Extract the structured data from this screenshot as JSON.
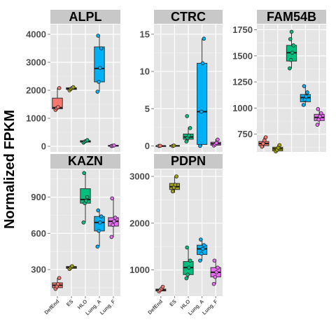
{
  "chart_data": {
    "type": "box",
    "ylabel": "Normalized FPKM",
    "groups": [
      "DefEnd",
      "ES",
      "HLO",
      "Lung_A",
      "Lung_F"
    ],
    "group_colors": {
      "DefEnd": "#F8766D",
      "ES": "#A3A500",
      "HLO": "#00BF7D",
      "Lung_A": "#00B0F6",
      "Lung_F": "#E76BF3"
    },
    "grid": true,
    "panel_background": "#e5e5e5",
    "strip_background": "#c8c8c8",
    "panels": [
      {
        "title": "ALPL",
        "yticks": [
          0,
          1000,
          2000,
          3000,
          4000
        ],
        "ylim": [
          -200,
          4350
        ],
        "boxes": [
          {
            "group": "DefEnd",
            "q1": 1340,
            "median": 1380,
            "q3": 1720,
            "min": 1300,
            "max": 2080,
            "points": [
              1300,
              1360,
              1400,
              2080
            ]
          },
          {
            "group": "ES",
            "q1": 2030,
            "median": 2060,
            "q3": 2090,
            "min": 2000,
            "max": 2120,
            "points": [
              2000,
              2050,
              2080,
              2110
            ]
          },
          {
            "group": "HLO",
            "q1": 150,
            "median": 180,
            "q3": 200,
            "min": 130,
            "max": 220,
            "points": [
              130,
              170,
              190,
              220
            ]
          },
          {
            "group": "Lung_A",
            "q1": 2300,
            "median": 2780,
            "q3": 3550,
            "min": 1950,
            "max": 3950,
            "points": [
              1950,
              2300,
              2800,
              3500,
              3950
            ]
          },
          {
            "group": "Lung_F",
            "q1": 10,
            "median": 20,
            "q3": 30,
            "min": 5,
            "max": 40,
            "points": [
              10,
              20,
              30
            ]
          }
        ]
      },
      {
        "title": "CTRC",
        "yticks": [
          0,
          5,
          10,
          15
        ],
        "ylim": [
          -0.8,
          16.3
        ],
        "boxes": [
          {
            "group": "DefEnd",
            "q1": 0,
            "median": 0,
            "q3": 0.02,
            "min": 0,
            "max": 0.05,
            "points": [
              0,
              0.02
            ]
          },
          {
            "group": "ES",
            "q1": 0,
            "median": 0.02,
            "q3": 0.05,
            "min": 0,
            "max": 0.08,
            "points": [
              0,
              0.05
            ]
          },
          {
            "group": "HLO",
            "q1": 0.9,
            "median": 1.2,
            "q3": 1.6,
            "min": 0.6,
            "max": 2.5,
            "points": [
              0.6,
              1.1,
              1.4,
              2.4,
              4.0
            ]
          },
          {
            "group": "Lung_A",
            "q1": 0.2,
            "median": 4.6,
            "q3": 11.1,
            "min": 0,
            "max": 14.4,
            "points": [
              0,
              4.6,
              11.1,
              14.4
            ]
          },
          {
            "group": "Lung_F",
            "q1": 0.1,
            "median": 0.3,
            "q3": 0.5,
            "min": 0,
            "max": 0.9,
            "points": [
              0.05,
              0.2,
              0.4,
              0.85
            ]
          }
        ]
      },
      {
        "title": "FAM54B",
        "yticks": [
          750,
          1000,
          1250,
          1500,
          1750
        ],
        "ylim": [
          580,
          1800
        ],
        "boxes": [
          {
            "group": "DefEnd",
            "q1": 640,
            "median": 660,
            "q3": 680,
            "min": 620,
            "max": 720,
            "points": [
              630,
              660,
              690,
              720
            ]
          },
          {
            "group": "ES",
            "q1": 590,
            "median": 610,
            "q3": 625,
            "min": 580,
            "max": 650,
            "points": [
              585,
              600,
              620,
              645
            ]
          },
          {
            "group": "HLO",
            "q1": 1450,
            "median": 1530,
            "q3": 1600,
            "min": 1380,
            "max": 1730,
            "points": [
              1380,
              1460,
              1530,
              1600,
              1660,
              1730
            ]
          },
          {
            "group": "Lung_A",
            "q1": 1060,
            "median": 1100,
            "q3": 1130,
            "min": 1020,
            "max": 1210,
            "points": [
              1030,
              1080,
              1110,
              1150,
              1210
            ]
          },
          {
            "group": "Lung_F",
            "q1": 880,
            "median": 910,
            "q3": 940,
            "min": 840,
            "max": 990,
            "points": [
              840,
              890,
              920,
              950,
              990
            ]
          }
        ]
      },
      {
        "title": "KAZN",
        "yticks": [
          300,
          600,
          900
        ],
        "ylim": [
          80,
          1130
        ],
        "boxes": [
          {
            "group": "DefEnd",
            "q1": 150,
            "median": 170,
            "q3": 190,
            "min": 140,
            "max": 230,
            "points": [
              140,
              160,
              180,
              230
            ]
          },
          {
            "group": "ES",
            "q1": 310,
            "median": 320,
            "q3": 325,
            "min": 300,
            "max": 335,
            "points": [
              305,
              318,
              328
            ]
          },
          {
            "group": "HLO",
            "q1": 850,
            "median": 880,
            "q3": 970,
            "min": 690,
            "max": 1100,
            "points": [
              690,
              850,
              870,
              900,
              1100
            ]
          },
          {
            "group": "Lung_A",
            "q1": 620,
            "median": 690,
            "q3": 740,
            "min": 490,
            "max": 790,
            "points": [
              490,
              620,
              690,
              740,
              790
            ]
          },
          {
            "group": "Lung_F",
            "q1": 660,
            "median": 700,
            "q3": 730,
            "min": 570,
            "max": 890,
            "points": [
              570,
              670,
              700,
              730,
              890
            ]
          }
        ]
      },
      {
        "title": "PDPN",
        "yticks": [
          1000,
          2000,
          3000
        ],
        "ylim": [
          440,
          3150
        ],
        "boxes": [
          {
            "group": "DefEnd",
            "q1": 550,
            "median": 570,
            "q3": 590,
            "min": 530,
            "max": 640,
            "points": [
              540,
              570,
              600,
              640
            ]
          },
          {
            "group": "ES",
            "q1": 2720,
            "median": 2780,
            "q3": 2850,
            "min": 2650,
            "max": 3000,
            "points": [
              2680,
              2760,
              2820,
              3000
            ]
          },
          {
            "group": "HLO",
            "q1": 900,
            "median": 1050,
            "q3": 1180,
            "min": 820,
            "max": 1480,
            "points": [
              820,
              900,
              1050,
              1200,
              1480
            ]
          },
          {
            "group": "Lung_A",
            "q1": 1330,
            "median": 1450,
            "q3": 1530,
            "min": 1200,
            "max": 1650,
            "points": [
              1200,
              1350,
              1450,
              1530,
              1650
            ]
          },
          {
            "group": "Lung_F",
            "q1": 850,
            "median": 950,
            "q3": 1050,
            "min": 700,
            "max": 1200,
            "points": [
              700,
              850,
              950,
              1050,
              1200
            ]
          }
        ]
      }
    ]
  }
}
